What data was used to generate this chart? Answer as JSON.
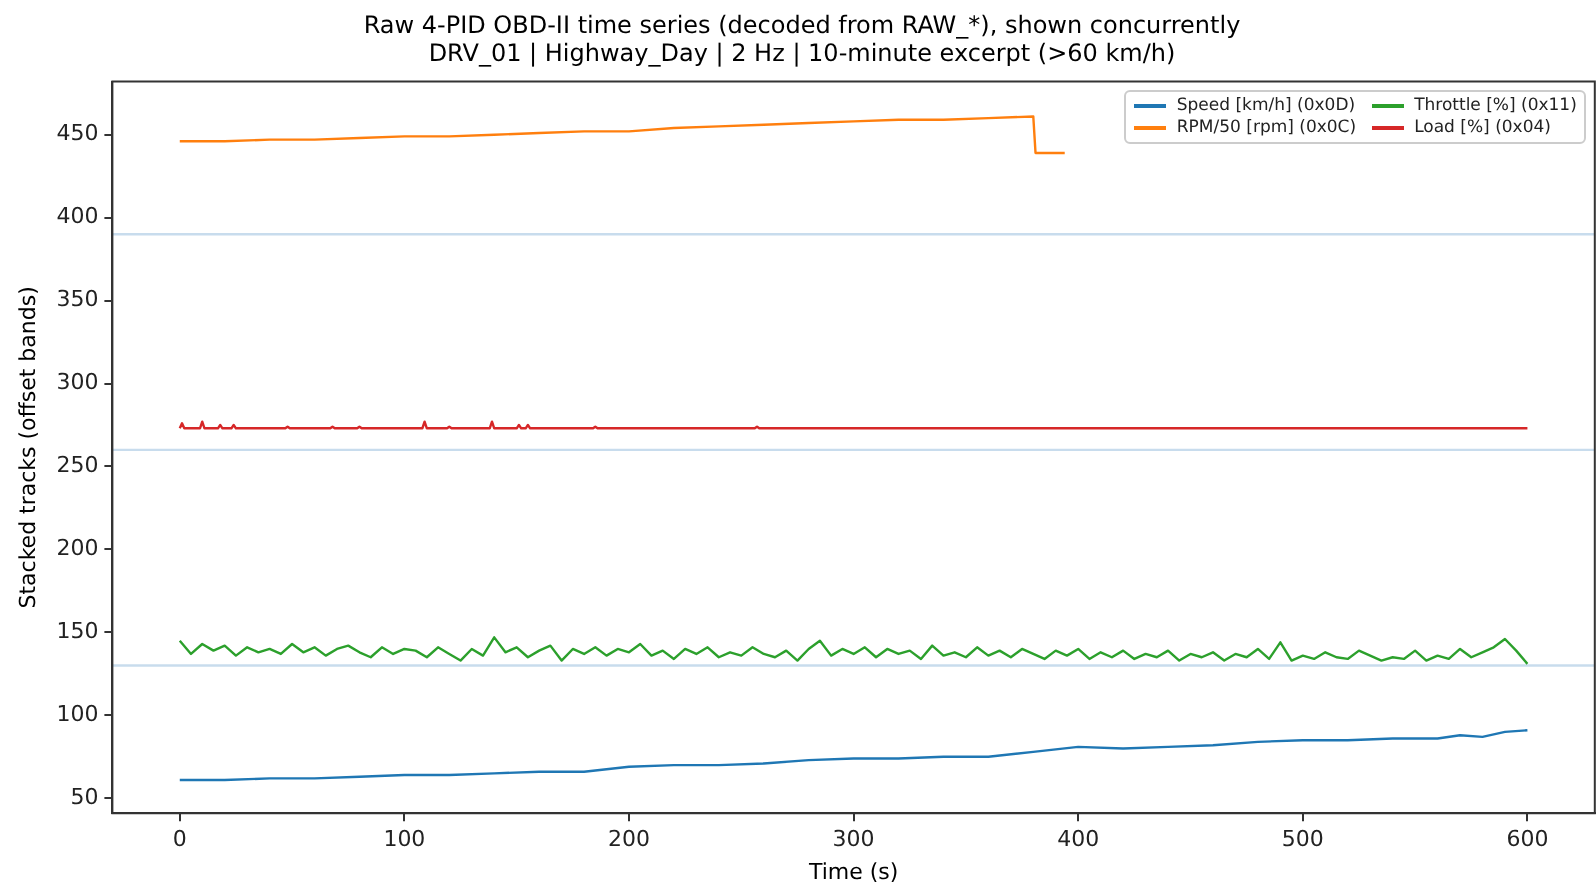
{
  "chart_data": {
    "type": "line",
    "title": "Raw 4-PID OBD-II time series (decoded from RAW_*), shown concurrently",
    "subtitle": "DRV_01 | Highway_Day | 2 Hz | 10-minute excerpt (>60 km/h)",
    "xlabel": "Time (s)",
    "ylabel": "Stacked tracks (offset bands)",
    "xlim": [
      -30,
      630
    ],
    "xticks": [
      0,
      100,
      200,
      300,
      400,
      500,
      600
    ],
    "ylim": [
      41,
      482
    ],
    "yticks": [
      50,
      100,
      150,
      200,
      250,
      300,
      350,
      400,
      450
    ],
    "grid": false,
    "legend": "top right",
    "ref_lines": [
      {
        "axis": "y",
        "value": 130,
        "color": "#c8dced"
      },
      {
        "axis": "y",
        "value": 260,
        "color": "#c8dced"
      },
      {
        "axis": "y",
        "value": 390,
        "color": "#c8dced"
      }
    ],
    "series": [
      {
        "name": "Speed [km/h] (0x0D)",
        "color": "#1f77b4",
        "x": [
          0,
          10,
          20,
          40,
          60,
          80,
          100,
          120,
          140,
          160,
          180,
          200,
          220,
          240,
          260,
          280,
          300,
          320,
          340,
          360,
          380,
          400,
          420,
          440,
          460,
          480,
          500,
          520,
          540,
          560,
          570,
          580,
          590,
          600
        ],
        "values": [
          61,
          61,
          61,
          62,
          62,
          63,
          64,
          64,
          65,
          66,
          66,
          69,
          70,
          70,
          71,
          73,
          74,
          74,
          75,
          75,
          78,
          81,
          80,
          81,
          82,
          84,
          85,
          85,
          86,
          86,
          88,
          87,
          90,
          91
        ]
      },
      {
        "name": "RPM/50 [rpm] (0x0C)",
        "color": "#ff7f0e",
        "x": [
          0,
          20,
          40,
          60,
          80,
          100,
          120,
          140,
          160,
          180,
          200,
          220,
          240,
          260,
          280,
          300,
          320,
          340,
          360,
          380,
          381,
          394
        ],
        "values": [
          446,
          446,
          447,
          447,
          448,
          449,
          449,
          450,
          451,
          452,
          452,
          454,
          455,
          456,
          457,
          458,
          459,
          459,
          460,
          461,
          439,
          439
        ]
      },
      {
        "name": "Throttle [%] (0x11)",
        "color": "#2ca02c",
        "x": [
          0,
          5,
          10,
          15,
          20,
          25,
          30,
          35,
          40,
          45,
          50,
          55,
          60,
          65,
          70,
          75,
          80,
          85,
          90,
          95,
          100,
          105,
          110,
          115,
          120,
          125,
          130,
          135,
          140,
          145,
          150,
          155,
          160,
          165,
          170,
          175,
          180,
          185,
          190,
          195,
          200,
          205,
          210,
          215,
          220,
          225,
          230,
          235,
          240,
          245,
          250,
          255,
          260,
          265,
          270,
          275,
          280,
          285,
          290,
          295,
          300,
          305,
          310,
          315,
          320,
          325,
          330,
          335,
          340,
          345,
          350,
          355,
          360,
          365,
          370,
          375,
          380,
          385,
          390,
          395,
          400,
          405,
          410,
          415,
          420,
          425,
          430,
          435,
          440,
          445,
          450,
          455,
          460,
          465,
          470,
          475,
          480,
          485,
          490,
          495,
          500,
          505,
          510,
          515,
          520,
          525,
          530,
          535,
          540,
          545,
          550,
          555,
          560,
          565,
          570,
          575,
          580,
          585,
          590,
          595,
          600
        ],
        "values": [
          145,
          137,
          143,
          139,
          142,
          136,
          141,
          138,
          140,
          137,
          143,
          138,
          141,
          136,
          140,
          142,
          138,
          135,
          141,
          137,
          140,
          139,
          135,
          141,
          137,
          133,
          140,
          136,
          147,
          138,
          141,
          135,
          139,
          142,
          133,
          140,
          137,
          141,
          136,
          140,
          138,
          143,
          136,
          139,
          134,
          140,
          137,
          141,
          135,
          138,
          136,
          141,
          137,
          135,
          139,
          133,
          140,
          145,
          136,
          140,
          137,
          141,
          135,
          140,
          137,
          139,
          134,
          142,
          136,
          138,
          135,
          141,
          136,
          139,
          135,
          140,
          137,
          134,
          139,
          136,
          140,
          134,
          138,
          135,
          139,
          134,
          137,
          135,
          139,
          133,
          137,
          135,
          138,
          133,
          137,
          135,
          140,
          134,
          144,
          133,
          136,
          134,
          138,
          135,
          134,
          139,
          136,
          133,
          135,
          134,
          139,
          133,
          136,
          134,
          140,
          135,
          138,
          141,
          146,
          139,
          131
        ]
      },
      {
        "name": "Load [%] (0x04)",
        "color": "#d62728",
        "x": [
          0,
          1,
          2,
          9,
          10,
          11,
          17,
          18,
          19,
          23,
          24,
          25,
          47,
          48,
          49,
          67,
          68,
          69,
          79,
          80,
          81,
          108,
          109,
          110,
          119,
          120,
          121,
          138,
          139,
          140,
          150,
          151,
          152,
          154,
          155,
          156,
          184,
          185,
          186,
          256,
          257,
          258,
          600
        ],
        "values": [
          273,
          276,
          273,
          273,
          277,
          273,
          273,
          275,
          273,
          273,
          275,
          273,
          273,
          274,
          273,
          273,
          274,
          273,
          273,
          274,
          273,
          273,
          277,
          273,
          273,
          274,
          273,
          273,
          277,
          273,
          273,
          275,
          273,
          273,
          275,
          273,
          273,
          274,
          273,
          273,
          274,
          273,
          273
        ]
      }
    ]
  }
}
